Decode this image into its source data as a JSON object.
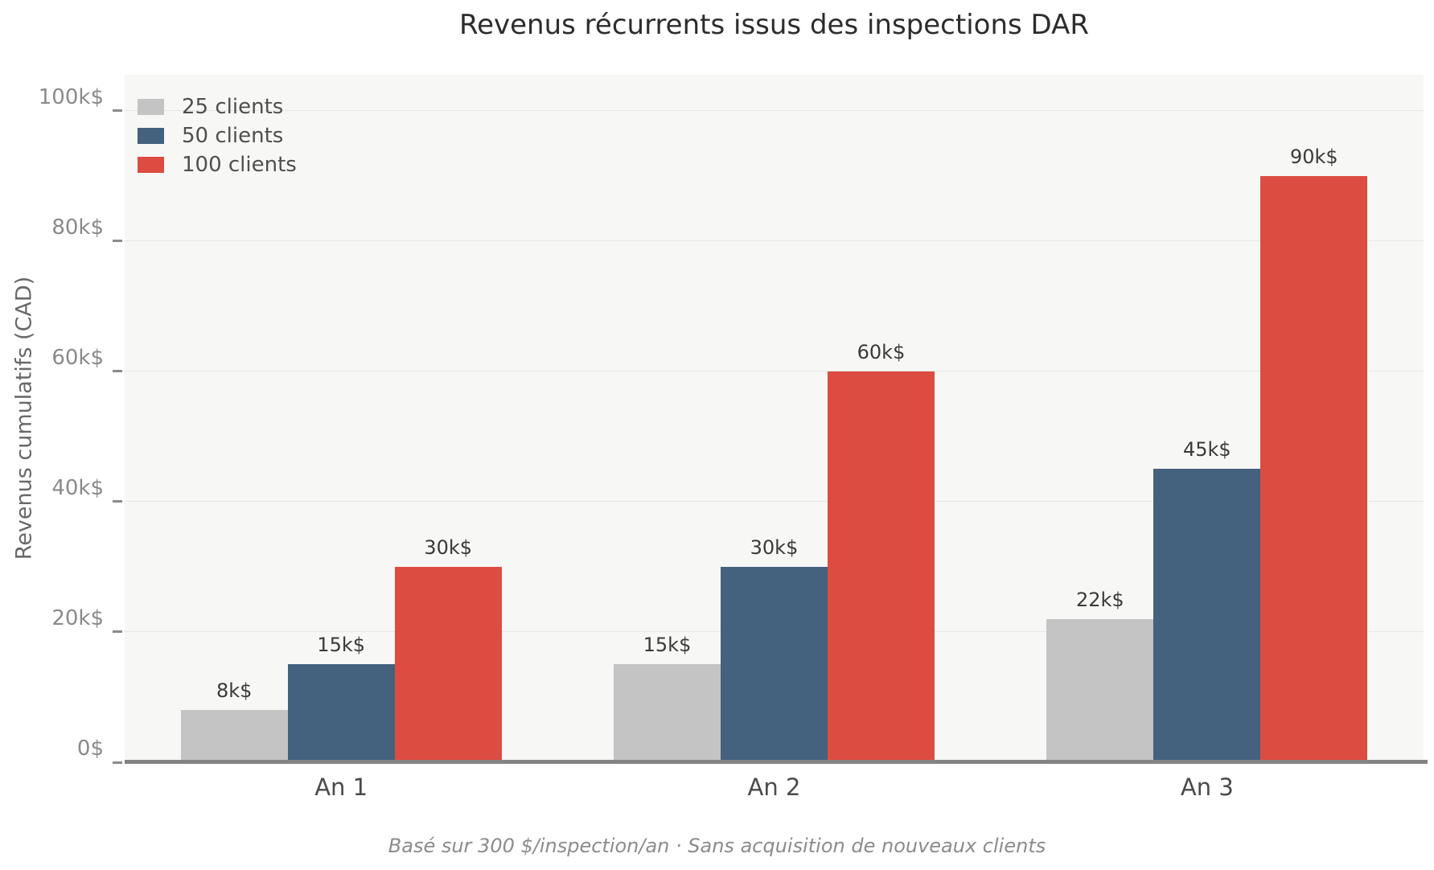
{
  "title": "Revenus récurrents issus des inspections DAR",
  "footer": "Basé sur 300 $/inspection/an · Sans acquisition de nouveaux clients",
  "chart_data": {
    "type": "bar",
    "categories": [
      "An 1",
      "An 2",
      "An 3"
    ],
    "series": [
      {
        "name": "25 clients",
        "color": "#c4c4c4",
        "values": [
          8000,
          15000,
          22000
        ],
        "value_labels": [
          "8k$",
          "15k$",
          "22k$"
        ]
      },
      {
        "name": "50 clients",
        "color": "#44617e",
        "values": [
          15000,
          30000,
          45000
        ],
        "value_labels": [
          "15k$",
          "30k$",
          "45k$"
        ]
      },
      {
        "name": "100 clients",
        "color": "#dd4c41",
        "values": [
          30000,
          60000,
          90000
        ],
        "value_labels": [
          "30k$",
          "60k$",
          "90k$"
        ]
      }
    ],
    "xlabel": "",
    "ylabel": "Revenus cumulatifs (CAD)",
    "ylim": [
      0,
      105500
    ],
    "yticks": [
      {
        "value": 0,
        "label": "0$"
      },
      {
        "value": 20000,
        "label": "20k$"
      },
      {
        "value": 40000,
        "label": "40k$"
      },
      {
        "value": 60000,
        "label": "60k$"
      },
      {
        "value": 80000,
        "label": "80k$"
      },
      {
        "value": 100000,
        "label": "100k$"
      }
    ],
    "grid": true,
    "legend_position": "upper-left"
  },
  "colors": {
    "page_bg": "#ffffff",
    "plot_bg": "#f7f7f5",
    "gridline": "#e7e6e4",
    "baseline": "#838383",
    "title_text": "#2d2d2d",
    "tick_text": "#8a8a8a",
    "axis_label_text": "#696969",
    "category_text": "#4b4b4b",
    "value_label_text": "#3a3a3a",
    "legend_text": "#4f4f4f",
    "footer_text": "#8c8c8c"
  }
}
